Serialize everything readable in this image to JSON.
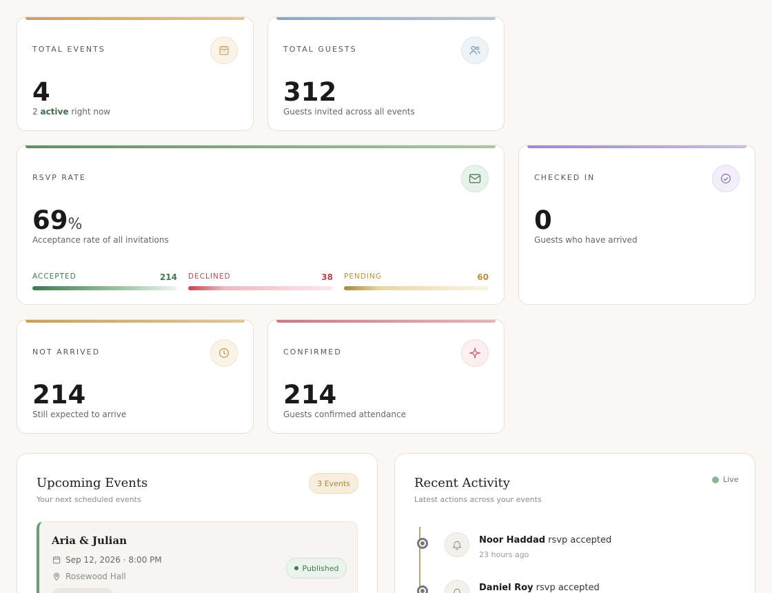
{
  "stats": {
    "total_events": {
      "label": "Total Events",
      "value": "4",
      "sub_prefix": "2",
      "sub_highlight": "active",
      "sub_suffix": "right now",
      "icon": "calendar-icon",
      "accent": "#c9a15c"
    },
    "total_guests": {
      "label": "Total Guests",
      "value": "312",
      "sub": "Guests invited across all events",
      "icon": "users-icon",
      "accent": "#8aa6c4"
    },
    "rsvp_rate": {
      "label": "RSVP Rate",
      "value": "69",
      "unit": "%",
      "sub": "Acceptance rate of all invitations",
      "icon": "mail-icon",
      "accent": "#6b9b76",
      "breakdown": [
        {
          "label": "Accepted",
          "count": "214",
          "color": "#3f7a4e"
        },
        {
          "label": "Declined",
          "count": "38",
          "color": "#c0444f"
        },
        {
          "label": "Pending",
          "count": "60",
          "color": "#b8913f"
        }
      ]
    },
    "checked_in": {
      "label": "Checked In",
      "value": "0",
      "sub": "Guests who have arrived",
      "icon": "check-circle-icon",
      "accent": "#9c8ac9"
    },
    "not_arrived": {
      "label": "Not Arrived",
      "value": "214",
      "sub": "Still expected to arrive",
      "icon": "clock-icon",
      "accent": "#c9a15c"
    },
    "confirmed": {
      "label": "Confirmed",
      "value": "214",
      "sub": "Guests confirmed attendance",
      "icon": "sparkle-icon",
      "accent": "#c97a86"
    }
  },
  "upcoming": {
    "title": "Upcoming Events",
    "subtitle": "Your next scheduled events",
    "count_badge": "3 Events",
    "events": [
      {
        "title": "Aria & Julian",
        "date": "Sep 12, 2026 · 8:00 PM",
        "venue": "Rosewood Hall",
        "status": "Published"
      }
    ]
  },
  "activity": {
    "title": "Recent Activity",
    "subtitle": "Latest actions across your events",
    "live_label": "Live",
    "items": [
      {
        "name": "Noor Haddad",
        "action": "rsvp accepted",
        "time": "23 hours ago"
      },
      {
        "name": "Daniel Roy",
        "action": "rsvp accepted",
        "time": ""
      }
    ]
  }
}
